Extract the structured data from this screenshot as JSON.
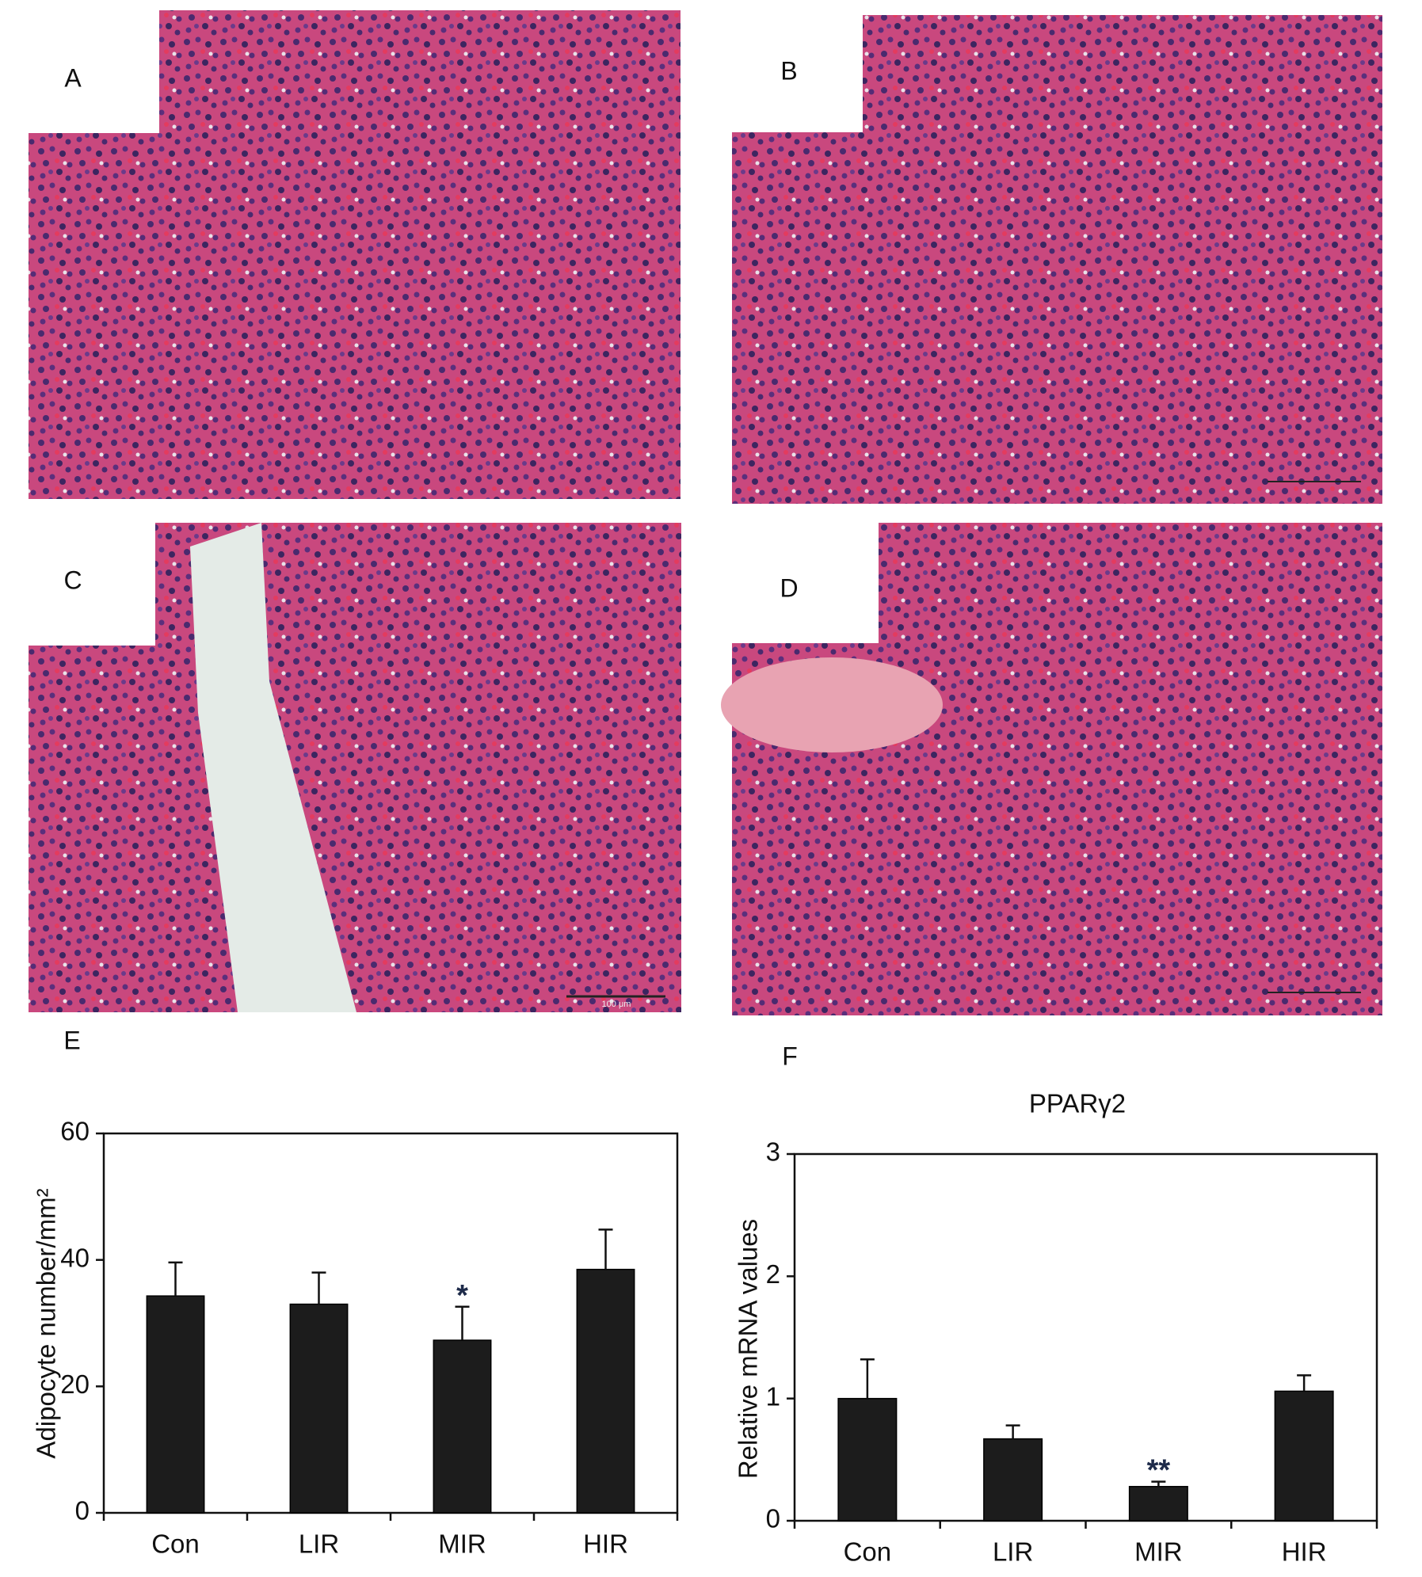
{
  "images": [
    {
      "label": "A"
    },
    {
      "label": "B"
    },
    {
      "label": "C",
      "scale_bar": "100 μm"
    },
    {
      "label": "D"
    }
  ],
  "chart_data": [
    {
      "type": "bar",
      "panel": "E",
      "ylabel": "Adipocyte number/mm²",
      "categories": [
        "Con",
        "LIR",
        "MIR",
        "HIR"
      ],
      "values": [
        34.3,
        33,
        27.3,
        38.5
      ],
      "errors": [
        5.3,
        5,
        5.3,
        6.3
      ],
      "significance": [
        null,
        null,
        "*",
        null
      ],
      "color": "#1c1c1c",
      "ylim": [
        0,
        60
      ],
      "yticks": [
        0,
        20,
        40,
        60
      ]
    },
    {
      "type": "bar",
      "panel": "F",
      "title": "PPARγ2",
      "ylabel": "Relative mRNA values",
      "categories": [
        "Con",
        "LIR",
        "MIR",
        "HIR"
      ],
      "values": [
        1.0,
        0.67,
        0.28,
        1.06
      ],
      "errors": [
        0.32,
        0.11,
        0.04,
        0.13
      ],
      "significance": [
        null,
        null,
        "**",
        null
      ],
      "color": "#1c1c1c",
      "ylim": [
        0,
        3
      ],
      "yticks": [
        0,
        1,
        2,
        3
      ]
    }
  ]
}
